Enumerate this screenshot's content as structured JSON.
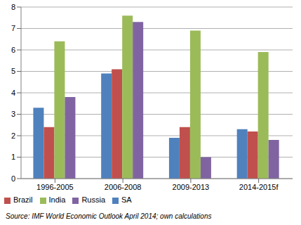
{
  "chart_data": {
    "type": "bar",
    "categories": [
      "1996-2005",
      "2006-2008",
      "2009-2013",
      "2014-2015f"
    ],
    "series": [
      {
        "name": "SA",
        "color": "#4f81bd",
        "values": [
          3.3,
          4.9,
          1.9,
          2.3
        ]
      },
      {
        "name": "Brazil",
        "color": "#c0504d",
        "values": [
          2.4,
          5.1,
          2.4,
          2.2
        ]
      },
      {
        "name": "India",
        "color": "#9bbb59",
        "values": [
          6.4,
          7.6,
          6.9,
          5.9
        ]
      },
      {
        "name": "Russia",
        "color": "#8064a2",
        "values": [
          3.8,
          7.3,
          1.0,
          1.8
        ]
      }
    ],
    "ylim": [
      0,
      8
    ],
    "yticks": [
      0,
      1,
      2,
      3,
      4,
      5,
      6,
      7,
      8
    ],
    "grid": true,
    "legend": "bottom",
    "annotations": [
      "Source: IMF World Economic Outlook April 2014; own calculations"
    ]
  }
}
